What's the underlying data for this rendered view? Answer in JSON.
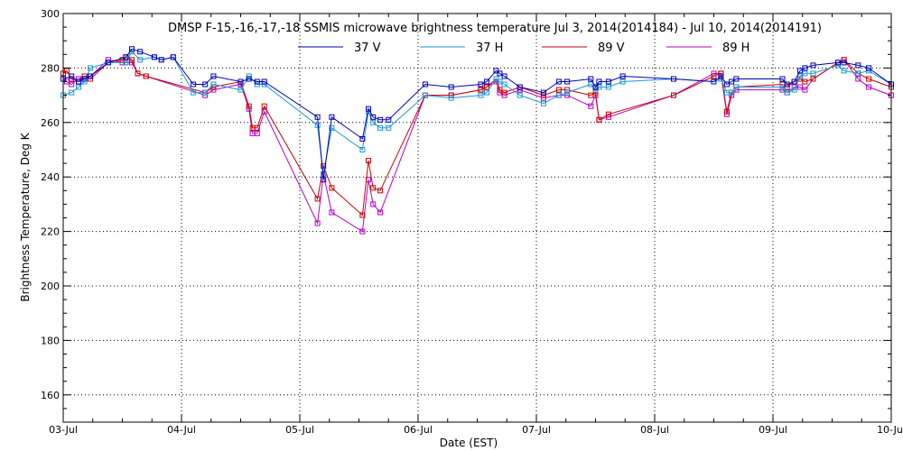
{
  "chart_data": {
    "type": "line",
    "title": "DMSP F-15,-16,-17,-18 SSMIS microwave brightness temperature Jul  3, 2014(2014184) - Jul 10, 2014(2014191)",
    "xlabel": "Date (EST)",
    "ylabel": "Brightness Temperature, Deg K",
    "xlim": [
      0,
      7
    ],
    "ylim": [
      150,
      300
    ],
    "x_ticks": [
      {
        "value": 0,
        "label": "03-Jul"
      },
      {
        "value": 1,
        "label": "04-Jul"
      },
      {
        "value": 2,
        "label": "05-Jul"
      },
      {
        "value": 3,
        "label": "06-Jul"
      },
      {
        "value": 4,
        "label": "07-Jul"
      },
      {
        "value": 5,
        "label": "08-Jul"
      },
      {
        "value": 6,
        "label": "09-Jul"
      },
      {
        "value": 7,
        "label": "10-Jul"
      }
    ],
    "y_ticks": [
      160,
      180,
      200,
      220,
      240,
      260,
      280,
      300
    ],
    "grid": true,
    "legend_position": "top",
    "series": [
      {
        "name": "37 V",
        "color": "#0000b4",
        "x": [
          0,
          0.07,
          0.13,
          0.18,
          0.23,
          0.38,
          0.53,
          0.58,
          0.65,
          0.77,
          0.83,
          0.93,
          1.1,
          1.2,
          1.27,
          1.5,
          1.57,
          1.64,
          1.7,
          2.15,
          2.2,
          2.27,
          2.53,
          2.58,
          2.62,
          2.68,
          2.75,
          3.06,
          3.28,
          3.53,
          3.58,
          3.66,
          3.69,
          3.73,
          3.86,
          4.06,
          4.19,
          4.26,
          4.46,
          4.5,
          4.53,
          4.61,
          4.73,
          5.16,
          5.5,
          5.56,
          5.61,
          5.65,
          5.69,
          6.08,
          6.12,
          6.18,
          6.23,
          6.27,
          6.34,
          6.55,
          6.6,
          6.72,
          6.81,
          7.0
        ],
        "values": [
          276,
          277,
          275,
          276,
          277,
          282,
          284,
          287,
          286,
          284,
          283,
          284,
          274,
          274,
          277,
          275,
          276,
          275,
          275,
          262,
          239,
          262,
          254,
          265,
          262,
          261,
          261,
          274,
          273,
          274,
          275,
          279,
          278,
          277,
          273,
          271,
          275,
          275,
          276,
          273,
          275,
          275,
          277,
          276,
          275,
          277,
          274,
          275,
          276,
          276,
          274,
          275,
          279,
          280,
          281,
          282,
          282,
          281,
          280,
          274
        ]
      },
      {
        "name": "37 H",
        "color": "#1e96d2",
        "x": [
          0,
          0.07,
          0.13,
          0.18,
          0.23,
          0.38,
          0.53,
          0.58,
          0.65,
          0.77,
          0.83,
          0.93,
          1.1,
          1.2,
          1.27,
          1.5,
          1.57,
          1.64,
          1.7,
          2.15,
          2.2,
          2.27,
          2.53,
          2.58,
          2.62,
          2.68,
          2.75,
          3.06,
          3.28,
          3.53,
          3.58,
          3.66,
          3.69,
          3.73,
          3.86,
          4.06,
          4.19,
          4.26,
          4.46,
          4.5,
          4.53,
          4.61,
          4.73,
          5.16,
          5.5,
          5.56,
          5.61,
          5.65,
          5.69,
          6.08,
          6.12,
          6.18,
          6.23,
          6.27,
          6.34,
          6.55,
          6.6,
          6.72,
          6.81,
          7.0
        ],
        "values": [
          270,
          271,
          273,
          275,
          280,
          282,
          282,
          286,
          283,
          284,
          283,
          284,
          271,
          271,
          274,
          272,
          277,
          274,
          274,
          259,
          241,
          258,
          250,
          264,
          260,
          258,
          258,
          270,
          269,
          270,
          271,
          276,
          275,
          274,
          270,
          267,
          270,
          271,
          274,
          272,
          273,
          273,
          275,
          276,
          275,
          276,
          271,
          271,
          273,
          273,
          271,
          272,
          277,
          278,
          278,
          281,
          279,
          278,
          279,
          274
        ]
      },
      {
        "name": "89 V",
        "color": "#c80000",
        "x": [
          0,
          0.03,
          0.07,
          0.13,
          0.18,
          0.23,
          0.38,
          0.5,
          0.53,
          0.58,
          0.63,
          0.7,
          1.2,
          1.27,
          1.5,
          1.57,
          1.6,
          1.64,
          1.7,
          2.15,
          2.2,
          2.27,
          2.53,
          2.58,
          2.62,
          2.68,
          3.06,
          3.28,
          3.53,
          3.58,
          3.66,
          3.69,
          3.73,
          3.86,
          4.06,
          4.19,
          4.26,
          4.46,
          4.5,
          4.53,
          4.61,
          5.16,
          5.5,
          5.56,
          5.61,
          5.65,
          5.69,
          6.08,
          6.12,
          6.18,
          6.23,
          6.27,
          6.34,
          6.55,
          6.6,
          6.72,
          6.81,
          7.0
        ],
        "values": [
          278,
          279,
          276,
          275,
          277,
          276,
          282,
          283,
          284,
          283,
          278,
          277,
          271,
          273,
          275,
          266,
          258,
          258,
          266,
          232,
          244,
          236,
          226,
          246,
          236,
          235,
          270,
          270,
          272,
          273,
          276,
          272,
          271,
          273,
          270,
          272,
          272,
          270,
          271,
          261,
          263,
          270,
          277,
          278,
          264,
          271,
          273,
          274,
          273,
          275,
          276,
          275,
          276,
          282,
          283,
          278,
          276,
          273
        ]
      },
      {
        "name": "89 H",
        "color": "#b400c8",
        "x": [
          0,
          0.03,
          0.07,
          0.13,
          0.18,
          0.23,
          0.38,
          0.5,
          0.53,
          0.58,
          0.63,
          0.7,
          1.2,
          1.27,
          1.5,
          1.57,
          1.6,
          1.64,
          1.7,
          2.15,
          2.2,
          2.27,
          2.53,
          2.58,
          2.62,
          2.68,
          3.06,
          3.28,
          3.53,
          3.58,
          3.66,
          3.69,
          3.73,
          3.86,
          4.06,
          4.19,
          4.26,
          4.46,
          4.5,
          4.53,
          4.61,
          5.16,
          5.5,
          5.56,
          5.61,
          5.65,
          5.69,
          6.08,
          6.12,
          6.18,
          6.23,
          6.27,
          6.34,
          6.55,
          6.6,
          6.72,
          6.81,
          7.0
        ],
        "values": [
          276,
          275,
          274,
          276,
          277,
          277,
          283,
          282,
          282,
          282,
          278,
          277,
          270,
          272,
          274,
          265,
          256,
          256,
          264,
          223,
          241,
          227,
          220,
          239,
          230,
          227,
          270,
          270,
          272,
          273,
          275,
          271,
          270,
          272,
          269,
          270,
          270,
          266,
          270,
          261,
          262,
          270,
          278,
          278,
          263,
          270,
          272,
          272,
          271,
          273,
          273,
          272,
          276,
          282,
          283,
          276,
          273,
          270
        ]
      }
    ]
  }
}
